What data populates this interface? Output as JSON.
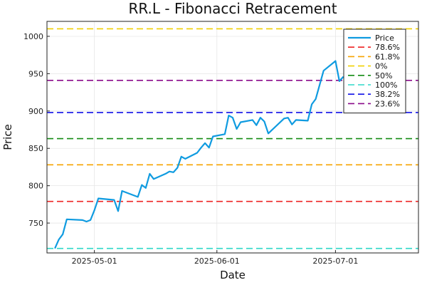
{
  "chart_data": {
    "type": "line",
    "title": "RR.L - Fibonacci Retracement",
    "xlabel": "Date",
    "ylabel": "Price",
    "xlim": [
      "2025-04-19",
      "2025-07-22"
    ],
    "ylim": [
      710,
      1020
    ],
    "x_ticks": [
      {
        "date": "2025-05-01",
        "label": "2025-05-01"
      },
      {
        "date": "2025-06-01",
        "label": "2025-06-01"
      },
      {
        "date": "2025-07-01",
        "label": "2025-07-01"
      }
    ],
    "y_ticks": [
      750,
      800,
      850,
      900,
      950,
      1000
    ],
    "grid": true,
    "legend_position": "top-right",
    "series": [
      {
        "name": "Price",
        "color": "#0f9be0",
        "points": [
          [
            "2025-04-21",
            716
          ],
          [
            "2025-04-22",
            728
          ],
          [
            "2025-04-23",
            735
          ],
          [
            "2025-04-24",
            755
          ],
          [
            "2025-04-28",
            754
          ],
          [
            "2025-04-29",
            752
          ],
          [
            "2025-04-30",
            754
          ],
          [
            "2025-05-01",
            767
          ],
          [
            "2025-05-02",
            783
          ],
          [
            "2025-05-06",
            781
          ],
          [
            "2025-05-07",
            766
          ],
          [
            "2025-05-08",
            793
          ],
          [
            "2025-05-12",
            785
          ],
          [
            "2025-05-13",
            801
          ],
          [
            "2025-05-14",
            797
          ],
          [
            "2025-05-15",
            816
          ],
          [
            "2025-05-16",
            809
          ],
          [
            "2025-05-19",
            816
          ],
          [
            "2025-05-20",
            819
          ],
          [
            "2025-05-21",
            818
          ],
          [
            "2025-05-22",
            824
          ],
          [
            "2025-05-23",
            839
          ],
          [
            "2025-05-24",
            836
          ],
          [
            "2025-05-27",
            844
          ],
          [
            "2025-05-28",
            851
          ],
          [
            "2025-05-29",
            857
          ],
          [
            "2025-05-30",
            851
          ],
          [
            "2025-05-31",
            866
          ],
          [
            "2025-06-03",
            869
          ],
          [
            "2025-06-04",
            894
          ],
          [
            "2025-06-05",
            891
          ],
          [
            "2025-06-06",
            876
          ],
          [
            "2025-06-07",
            885
          ],
          [
            "2025-06-10",
            888
          ],
          [
            "2025-06-11",
            881
          ],
          [
            "2025-06-12",
            891
          ],
          [
            "2025-06-13",
            886
          ],
          [
            "2025-06-14",
            870
          ],
          [
            "2025-06-18",
            890
          ],
          [
            "2025-06-19",
            891
          ],
          [
            "2025-06-20",
            882
          ],
          [
            "2025-06-21",
            888
          ],
          [
            "2025-06-24",
            887
          ],
          [
            "2025-06-25",
            909
          ],
          [
            "2025-06-26",
            916
          ],
          [
            "2025-06-28",
            954
          ],
          [
            "2025-07-01",
            967
          ],
          [
            "2025-07-02",
            940
          ],
          [
            "2025-07-03",
            946
          ]
        ]
      }
    ],
    "levels": [
      {
        "name": "78.6%",
        "value": 779,
        "color": "#ee2424"
      },
      {
        "name": "61.8%",
        "value": 828,
        "color": "#f6a300"
      },
      {
        "name": "0%",
        "value": 1010,
        "color": "#f0d000"
      },
      {
        "name": "50%",
        "value": 863,
        "color": "#138c13"
      },
      {
        "name": "100%",
        "value": 716,
        "color": "#2ed8c8"
      },
      {
        "name": "38.2%",
        "value": 898,
        "color": "#1010e8"
      },
      {
        "name": "23.6%",
        "value": 941,
        "color": "#8a0a8a"
      }
    ]
  }
}
